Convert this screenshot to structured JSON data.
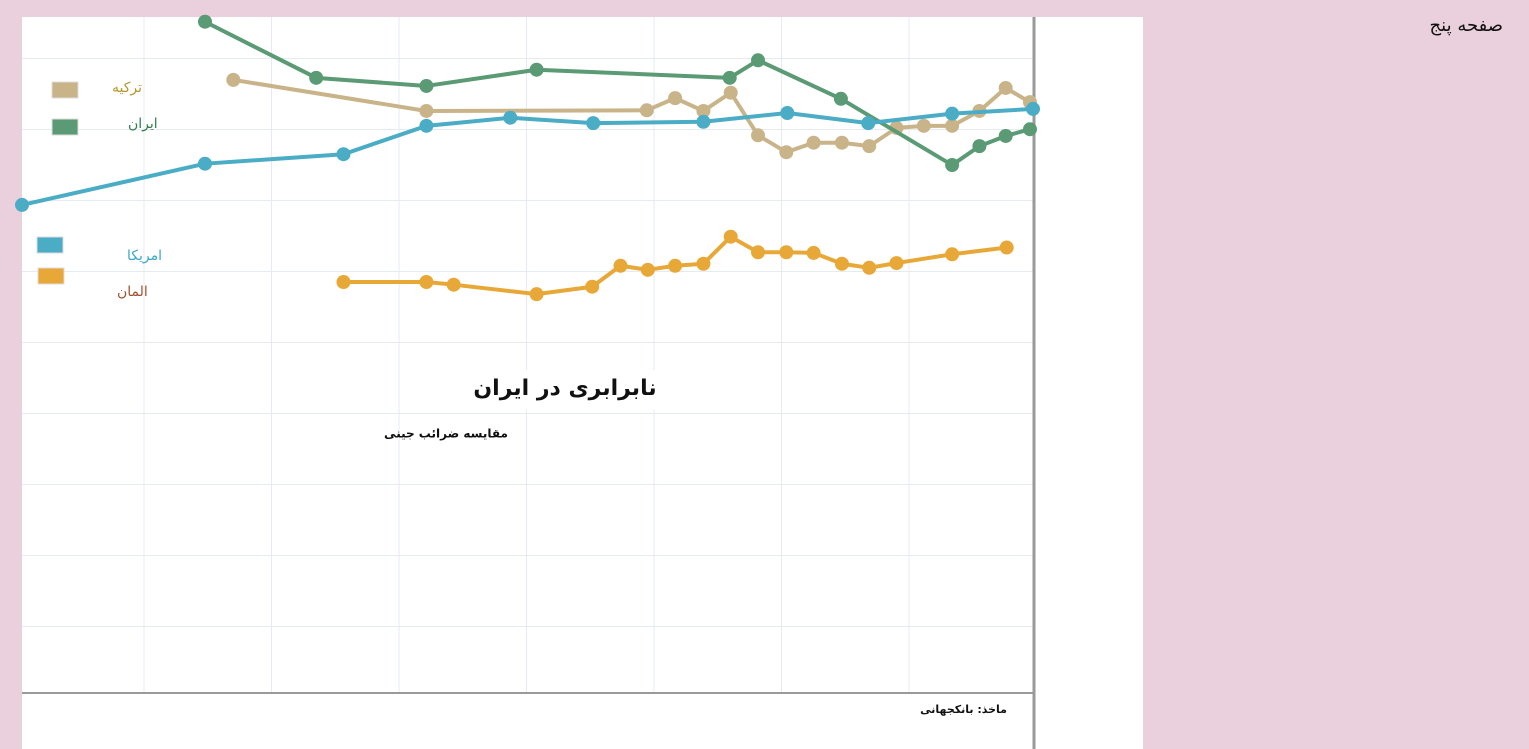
{
  "page": {
    "label": "صفحه پنج"
  },
  "chart_data": {
    "type": "line",
    "title": "نابرابری در ایران",
    "subtitle": "مقایسه ضرائب جینی",
    "source": "ماخذ: بانکجهانی",
    "xlim": [
      0,
      100
    ],
    "ylim": [
      0,
      100
    ],
    "grid": true,
    "series": [
      {
        "name": "ترکیه",
        "color": "#c9b48a",
        "legend_color": "#b8962e",
        "x": [
          20.9,
          40.0,
          61.8,
          64.6,
          67.4,
          70.1,
          72.8,
          75.6,
          78.3,
          81.1,
          83.8,
          86.5,
          89.2,
          92.0,
          94.7,
          97.3,
          99.7
        ],
        "values": [
          90.7,
          86.1,
          86.2,
          88.0,
          86.1,
          88.8,
          82.5,
          80.0,
          81.4,
          81.4,
          80.9,
          83.6,
          83.9,
          83.9,
          86.1,
          89.5,
          87.4
        ]
      },
      {
        "name": "ایران",
        "color": "#5a9a74",
        "legend_color": "#2e7d4f",
        "x": [
          18.1,
          29.1,
          40.0,
          50.9,
          70.0,
          72.8,
          81.0,
          92.0,
          94.7,
          97.3,
          99.7
        ],
        "values": [
          99.3,
          91.0,
          89.8,
          92.2,
          91.0,
          93.6,
          87.9,
          78.1,
          80.9,
          82.4,
          83.4
        ]
      },
      {
        "name": "امریکا",
        "color": "#4bacc6",
        "legend_color": "#3aa7c8",
        "x": [
          0,
          18.1,
          31.8,
          40.0,
          48.3,
          56.5,
          67.4,
          75.7,
          83.7,
          92.0,
          100
        ],
        "values": [
          72.2,
          78.3,
          79.7,
          83.9,
          85.1,
          84.3,
          84.5,
          85.8,
          84.3,
          85.7,
          86.4
        ]
      },
      {
        "name": "المان",
        "color": "#e8a838",
        "legend_color": "#a0522d",
        "x": [
          31.8,
          40.0,
          42.7,
          50.9,
          56.4,
          59.2,
          61.9,
          64.6,
          67.4,
          70.1,
          72.8,
          75.6,
          78.3,
          81.1,
          83.8,
          86.5,
          92.0,
          97.4
        ],
        "values": [
          60.8,
          60.8,
          60.4,
          59.0,
          60.1,
          63.2,
          62.6,
          63.2,
          63.5,
          67.5,
          65.2,
          65.2,
          65.1,
          63.5,
          62.9,
          63.6,
          64.9,
          65.9
        ]
      }
    ]
  }
}
